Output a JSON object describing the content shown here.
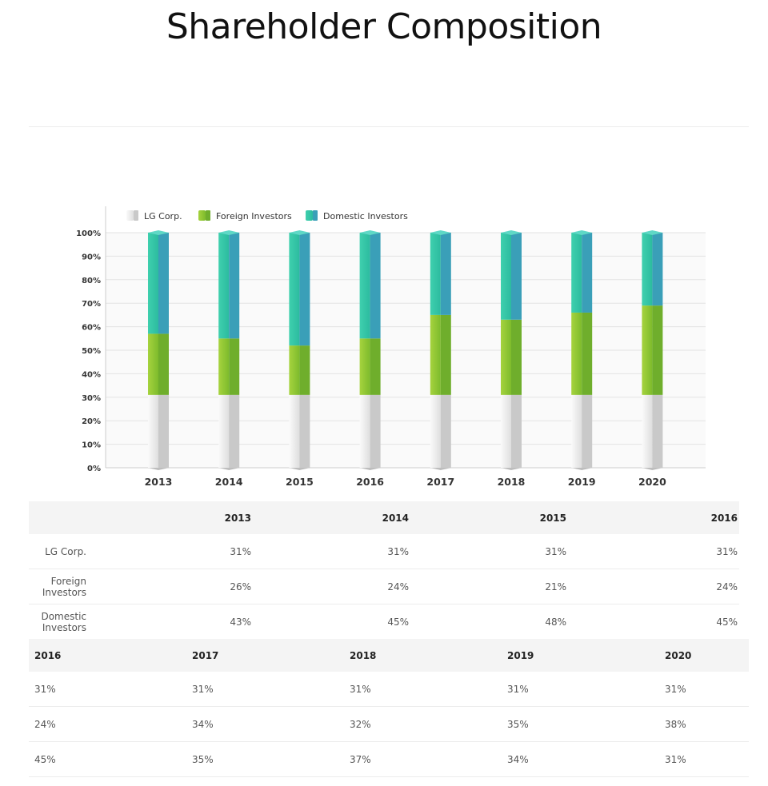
{
  "page": {
    "title": "Shareholder Composition"
  },
  "chart_data": {
    "type": "bar",
    "stacked": true,
    "categories": [
      "2013",
      "2014",
      "2015",
      "2016",
      "2017",
      "2018",
      "2019",
      "2020"
    ],
    "series": [
      {
        "name": "LG Corp.",
        "values": [
          31,
          31,
          31,
          31,
          31,
          31,
          31,
          31
        ],
        "color": "#e6e6e6"
      },
      {
        "name": "Foreign Investors",
        "values": [
          26,
          24,
          21,
          24,
          34,
          32,
          35,
          38
        ],
        "color": "#8cc63f"
      },
      {
        "name": "Domestic Investors",
        "values": [
          43,
          45,
          48,
          45,
          35,
          37,
          34,
          31
        ],
        "color": "#34c6b0"
      }
    ],
    "yticks": [
      "0%",
      "10%",
      "20%",
      "30%",
      "40%",
      "50%",
      "60%",
      "70%",
      "80%",
      "90%",
      "100%"
    ],
    "ylim": [
      0,
      100
    ],
    "grid": true,
    "legend": "top-left"
  },
  "table1": {
    "headers": [
      "",
      "2013",
      "2014",
      "2015",
      "2016"
    ],
    "rows": [
      [
        "LG Corp.",
        "31%",
        "31%",
        "31%",
        "31%"
      ],
      [
        "Foreign Investors",
        "26%",
        "24%",
        "21%",
        "24%"
      ],
      [
        "Domestic Investors",
        "43%",
        "45%",
        "48%",
        "45%"
      ]
    ]
  },
  "table2": {
    "headers": [
      "2016",
      "2017",
      "2018",
      "2019",
      "2020"
    ],
    "rows": [
      [
        "31%",
        "31%",
        "31%",
        "31%",
        "31%"
      ],
      [
        "24%",
        "34%",
        "32%",
        "35%",
        "38%"
      ],
      [
        "45%",
        "35%",
        "37%",
        "34%",
        "31%"
      ]
    ]
  }
}
